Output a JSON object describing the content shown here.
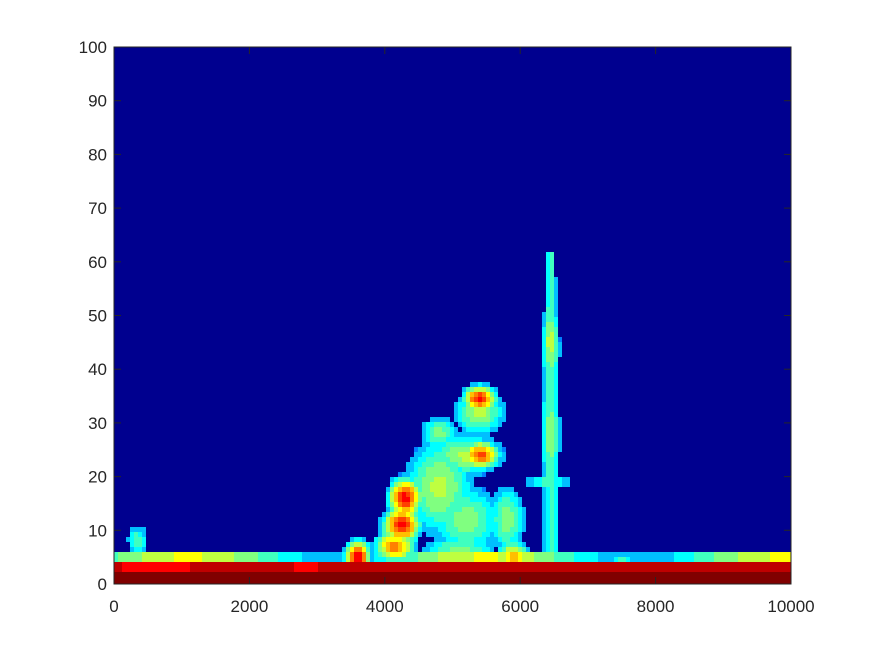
{
  "chart_data": {
    "type": "heatmap",
    "title": "",
    "xlabel": "",
    "ylabel": "",
    "xlim": [
      0,
      10000
    ],
    "ylim": [
      0,
      100
    ],
    "x_ticks": [
      0,
      2000,
      4000,
      6000,
      8000,
      10000
    ],
    "y_ticks": [
      0,
      10,
      20,
      30,
      40,
      50,
      60,
      70,
      80,
      90,
      100
    ],
    "colormap": "jet",
    "background_color": "#00008f",
    "grid": false,
    "hot_spots": [
      {
        "x": 4300,
        "y": 16,
        "intensity": 0.85
      },
      {
        "x": 4250,
        "y": 11,
        "intensity": 0.85
      },
      {
        "x": 4150,
        "y": 7,
        "intensity": 0.7
      },
      {
        "x": 5400,
        "y": 34,
        "intensity": 0.8
      },
      {
        "x": 5400,
        "y": 24,
        "intensity": 0.75
      },
      {
        "x": 6400,
        "y": 45,
        "intensity": 0.55
      },
      {
        "x": 3600,
        "y": 5,
        "intensity": 0.7
      },
      {
        "x": 5900,
        "y": 5,
        "intensity": 0.65
      }
    ]
  }
}
